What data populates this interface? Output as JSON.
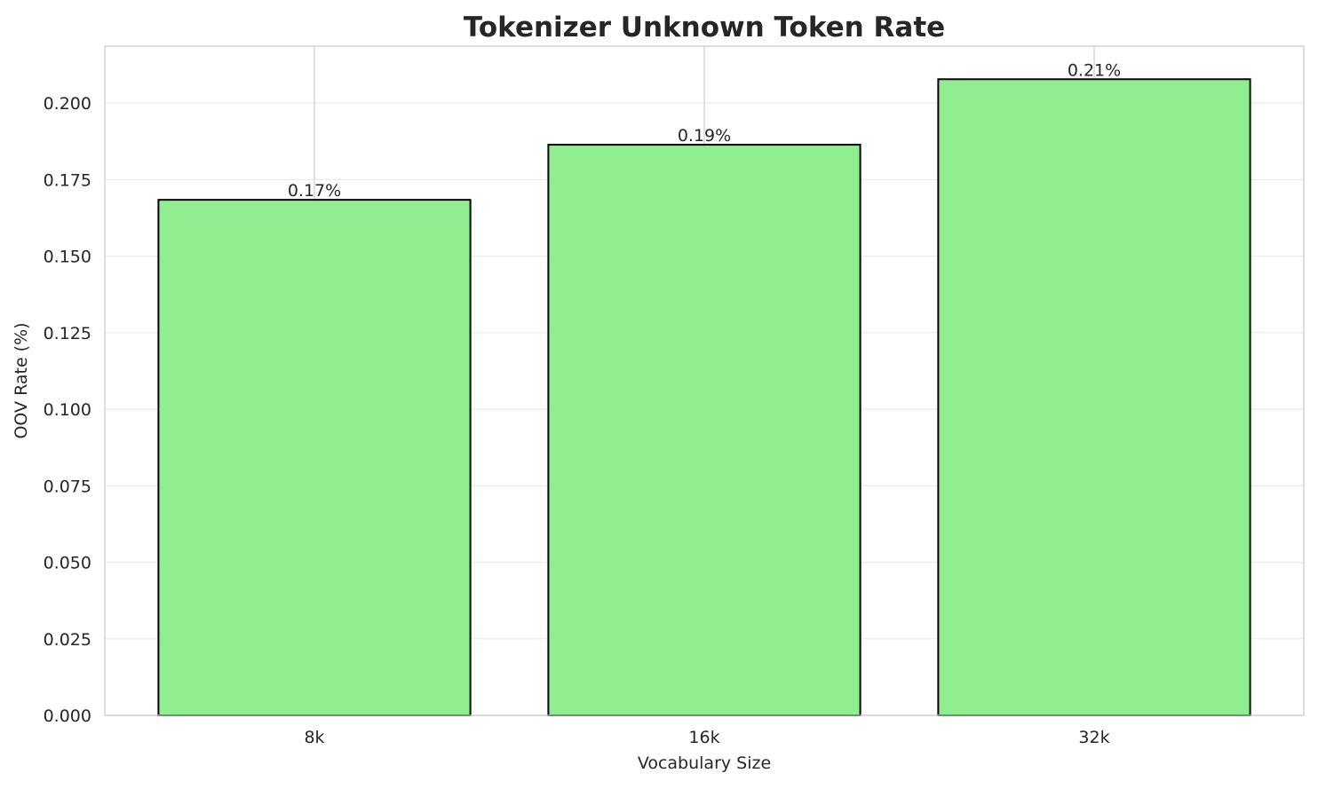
{
  "chart_data": {
    "type": "bar",
    "title": "Tokenizer Unknown Token Rate",
    "xlabel": "Vocabulary Size",
    "ylabel": "OOV Rate (%)",
    "categories": [
      "8k",
      "16k",
      "32k"
    ],
    "values": [
      0.1684,
      0.1864,
      0.2078
    ],
    "data_labels": [
      "0.17%",
      "0.19%",
      "0.21%"
    ],
    "ylim": [
      0,
      0.2186
    ],
    "yticks": [
      0.0,
      0.025,
      0.05,
      0.075,
      0.1,
      0.125,
      0.15,
      0.175,
      0.2
    ],
    "ytick_labels": [
      "0.000",
      "0.025",
      "0.050",
      "0.075",
      "0.100",
      "0.125",
      "0.150",
      "0.175",
      "0.200"
    ],
    "grid": true,
    "colors": {
      "bar": "#90ee90",
      "edge": "#000000",
      "grid": "#ebebeb",
      "spine": "#cccccc"
    }
  }
}
